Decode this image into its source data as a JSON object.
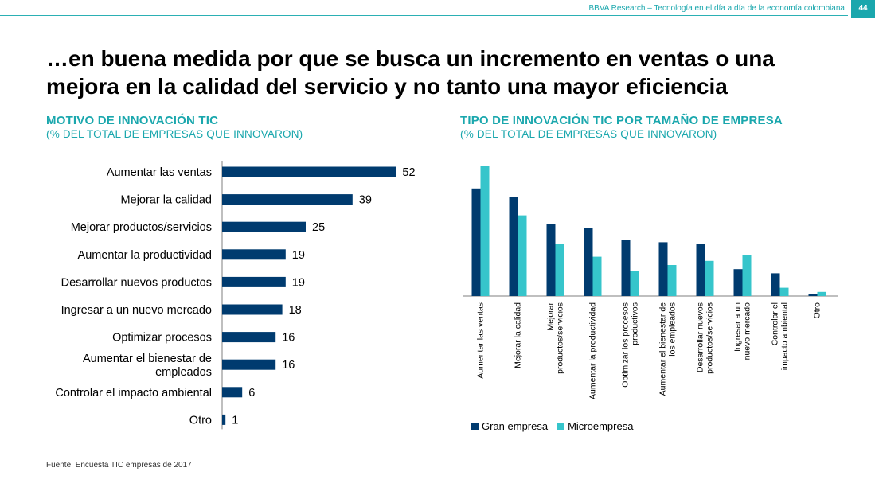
{
  "header": {
    "text": "BBVA Research – Tecnología en el día a día de la economía colombiana",
    "page_number": "44"
  },
  "slide_title": "…en buena medida por que se busca un incremento en ventas o una mejora en la calidad del servicio y no tanto una mayor eficiencia",
  "left_chart": {
    "title": "MOTIVO DE INNOVACIÓN TIC",
    "subtitle": "(% DEL TOTAL DE EMPRESAS QUE INNOVARON)"
  },
  "right_chart": {
    "title": "TIPO DE INNOVACIÓN TIC POR TAMAÑO DE EMPRESA",
    "subtitle": "(% DEL TOTAL DE EMPRESAS QUE INNOVARON)"
  },
  "source": "Fuente: Encuesta TIC empresas de 2017",
  "colors": {
    "accent": "#1aa7ad",
    "dark_bar": "#003b6f",
    "light_bar": "#36c5cb"
  },
  "chart_data": [
    {
      "type": "bar",
      "orientation": "horizontal",
      "title": "MOTIVO DE INNOVACIÓN TIC",
      "subtitle": "(% DEL TOTAL DE EMPRESAS QUE INNOVARON)",
      "categories": [
        "Aumentar las ventas",
        "Mejorar la calidad",
        "Mejorar productos/servicios",
        "Aumentar la productividad",
        "Desarrollar nuevos productos",
        "Ingresar a un nuevo mercado",
        "Optimizar  procesos",
        "Aumentar el bienestar de empleados",
        "Controlar el impacto ambiental",
        "Otro"
      ],
      "values": [
        52,
        39,
        25,
        19,
        19,
        18,
        16,
        16,
        6,
        1
      ],
      "data_labels": [
        "52",
        "39",
        "25",
        "19",
        "19",
        "18",
        "16",
        "16",
        "6",
        "1"
      ],
      "grid": false
    },
    {
      "type": "bar",
      "orientation": "vertical",
      "title": "TIPO DE INNOVACIÓN TIC POR TAMAÑO DE EMPRESA",
      "subtitle": "(% DEL TOTAL DE EMPRESAS QUE INNOVARON)",
      "categories": [
        "Aumentar las ventas",
        "Mejorar la calidad",
        "Mejorar productos/servicios",
        "Aumentar la productividad",
        "Optimizar los procesos productivos",
        "Aumentar el bienestar de los empleados",
        "Desarrollar nuevos productos/servicios",
        "Ingresar a un nuevo mercado",
        "Controlar el impacto ambiental",
        "Otro"
      ],
      "series": [
        {
          "name": "Gran empresa",
          "values": [
            52,
            48,
            35,
            33,
            27,
            26,
            25,
            13,
            11,
            1
          ]
        },
        {
          "name": "Microempresa",
          "values": [
            63,
            39,
            25,
            19,
            12,
            15,
            17,
            20,
            4,
            2
          ]
        }
      ],
      "ylim": [
        0,
        65
      ],
      "legend": "bottom",
      "grid": false
    }
  ]
}
